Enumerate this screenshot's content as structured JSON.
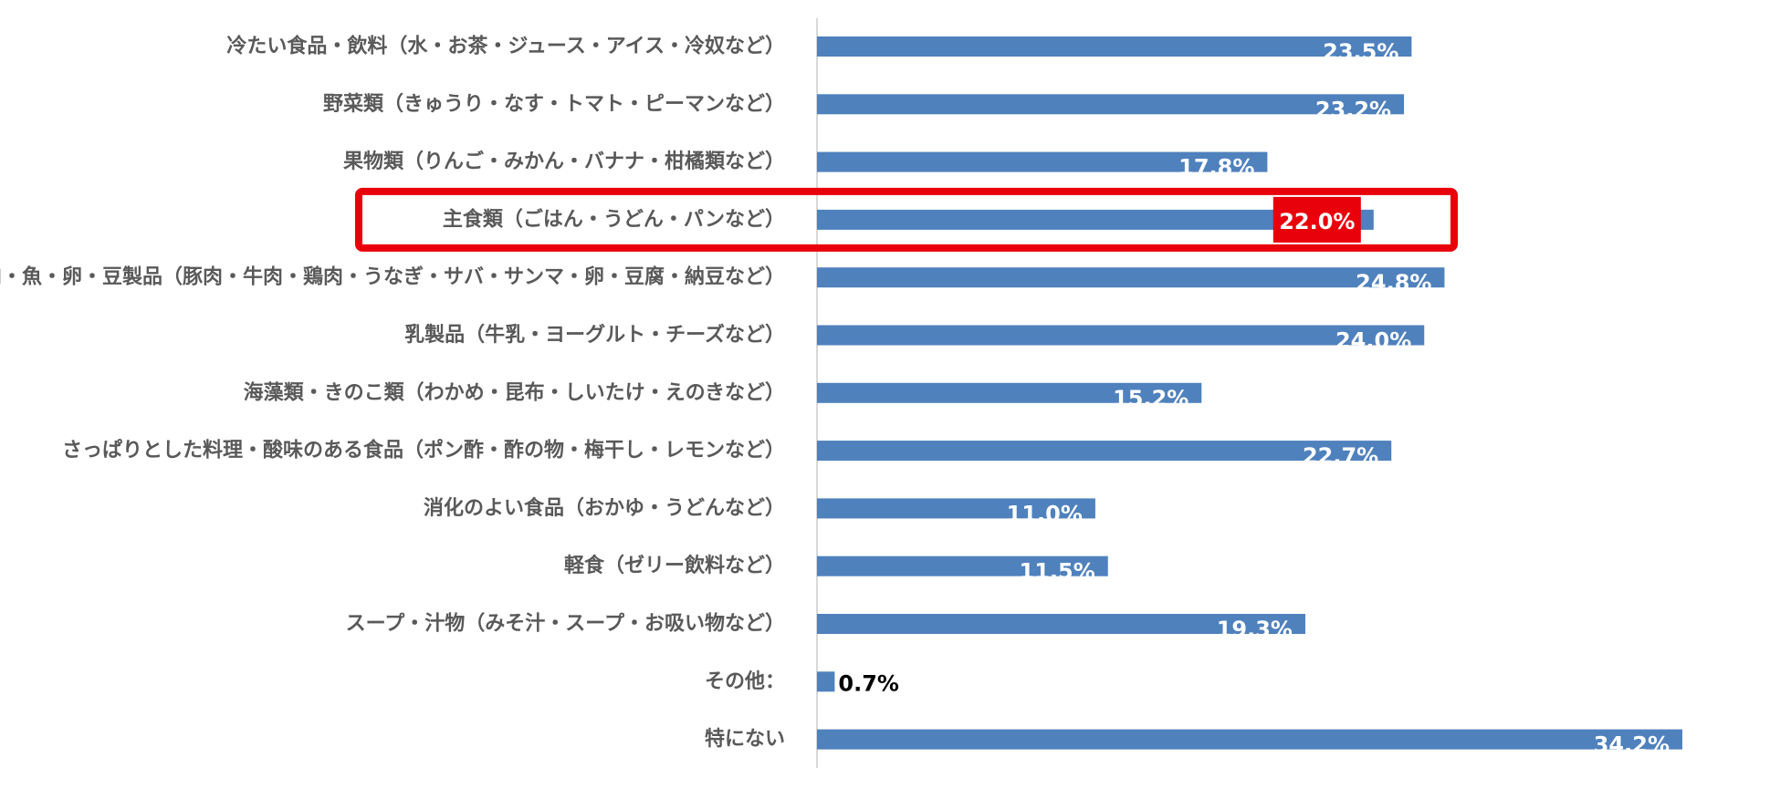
{
  "chart_data": {
    "type": "bar",
    "orientation": "horizontal",
    "categories": [
      "冷たい食品・飲料（水・お茶・ジュース・アイス・冷奴など）",
      "野菜類（きゅうり・なす・トマト・ピーマンなど）",
      "果物類（りんご・みかん・バナナ・柑橘類など）",
      "主食類（ごはん・うどん・パンなど）",
      "肉・魚・卵・豆製品（豚肉・牛肉・鶏肉・うなぎ・サバ・サンマ・卵・豆腐・納豆など）",
      "乳製品（牛乳・ヨーグルト・チーズなど）",
      "海藻類・きのこ類（わかめ・昆布・しいたけ・えのきなど）",
      "さっぱりとした料理・酸味のある食品（ポン酢・酢の物・梅干し・レモンなど）",
      "消化のよい食品（おかゆ・うどんなど）",
      "軽食（ゼリー飲料など）",
      "スープ・汁物（みそ汁・スープ・お吸い物など）",
      "その他：",
      "特にない"
    ],
    "values": [
      23.5,
      23.2,
      17.8,
      22.0,
      24.8,
      24.0,
      15.2,
      22.7,
      11.0,
      11.5,
      19.3,
      0.7,
      34.2
    ],
    "value_labels": [
      "23.5%",
      "23.2%",
      "17.8%",
      "22.0%",
      "24.8%",
      "24.0%",
      "15.2%",
      "22.7%",
      "11.0%",
      "11.5%",
      "19.3%",
      "0.7%",
      "34.2%"
    ],
    "xlim": [
      0,
      35
    ],
    "highlight_index": 3,
    "grid": false,
    "legend": "none",
    "colors": {
      "bar": "#4f81bd",
      "highlight": "#e8000b",
      "label_text": "#595959",
      "value_text_inside": "#ffffff",
      "value_text_outside": "#000000",
      "axis": "#d9d9d9"
    }
  }
}
